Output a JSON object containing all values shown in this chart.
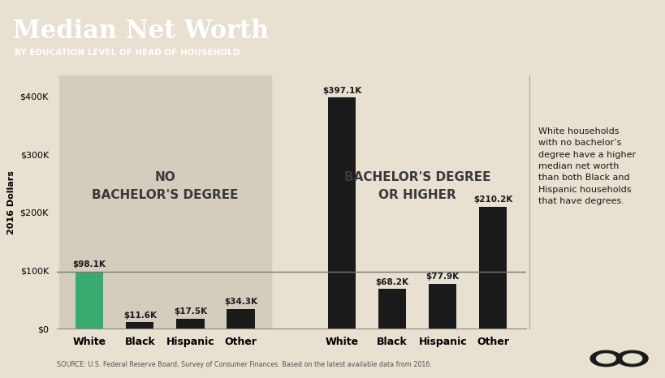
{
  "title": "Median Net Worth",
  "subtitle": "BY EDUCATION LEVEL OF HEAD OF HOUSEHOLD",
  "ylabel": "2016 Dollars",
  "source": "SOURCE: U.S. Federal Reserve Board, Survey of Consumer Finances. Based on the latest available data from 2016.",
  "categories_no_degree": [
    "White",
    "Black",
    "Hispanic",
    "Other"
  ],
  "categories_degree": [
    "White",
    "Black",
    "Hispanic",
    "Other"
  ],
  "values_no_degree": [
    98100,
    11600,
    17500,
    34300
  ],
  "values_degree": [
    397100,
    68200,
    77900,
    210200
  ],
  "labels_no_degree": [
    "$98.1K",
    "$11.6K",
    "$17.5K",
    "$34.3K"
  ],
  "labels_degree": [
    "$397.1K",
    "$68.2K",
    "$77.9K",
    "$210.2K"
  ],
  "bar_colors_no_degree": [
    "#3aaa6e",
    "#1a1a1a",
    "#1a1a1a",
    "#1a1a1a"
  ],
  "bar_colors_degree": [
    "#1a1a1a",
    "#1a1a1a",
    "#1a1a1a",
    "#1a1a1a"
  ],
  "section_label_no": "NO\nBACHELOR'S DEGREE",
  "section_label_deg": "BACHELOR'S DEGREE\nOR HIGHER",
  "annotation_text": "White households\nwith no bachelor’s\ndegree have a higher\nmedian net worth\nthan both Black and\nHispanic households\nthat have degrees.",
  "reference_line": 98100,
  "bg_color": "#e8e0d0",
  "header_bg": "#1a1a1a",
  "title_color": "#ffffff",
  "subtitle_color": "#ffffff",
  "yticks": [
    0,
    100000,
    200000,
    300000,
    400000
  ],
  "ytick_labels": [
    "$0",
    "$100K",
    "$200K",
    "$300K",
    "$400K"
  ],
  "ylim": [
    0,
    435000
  ],
  "section_bg_no": "#d4ccbc",
  "bar_width": 0.55
}
